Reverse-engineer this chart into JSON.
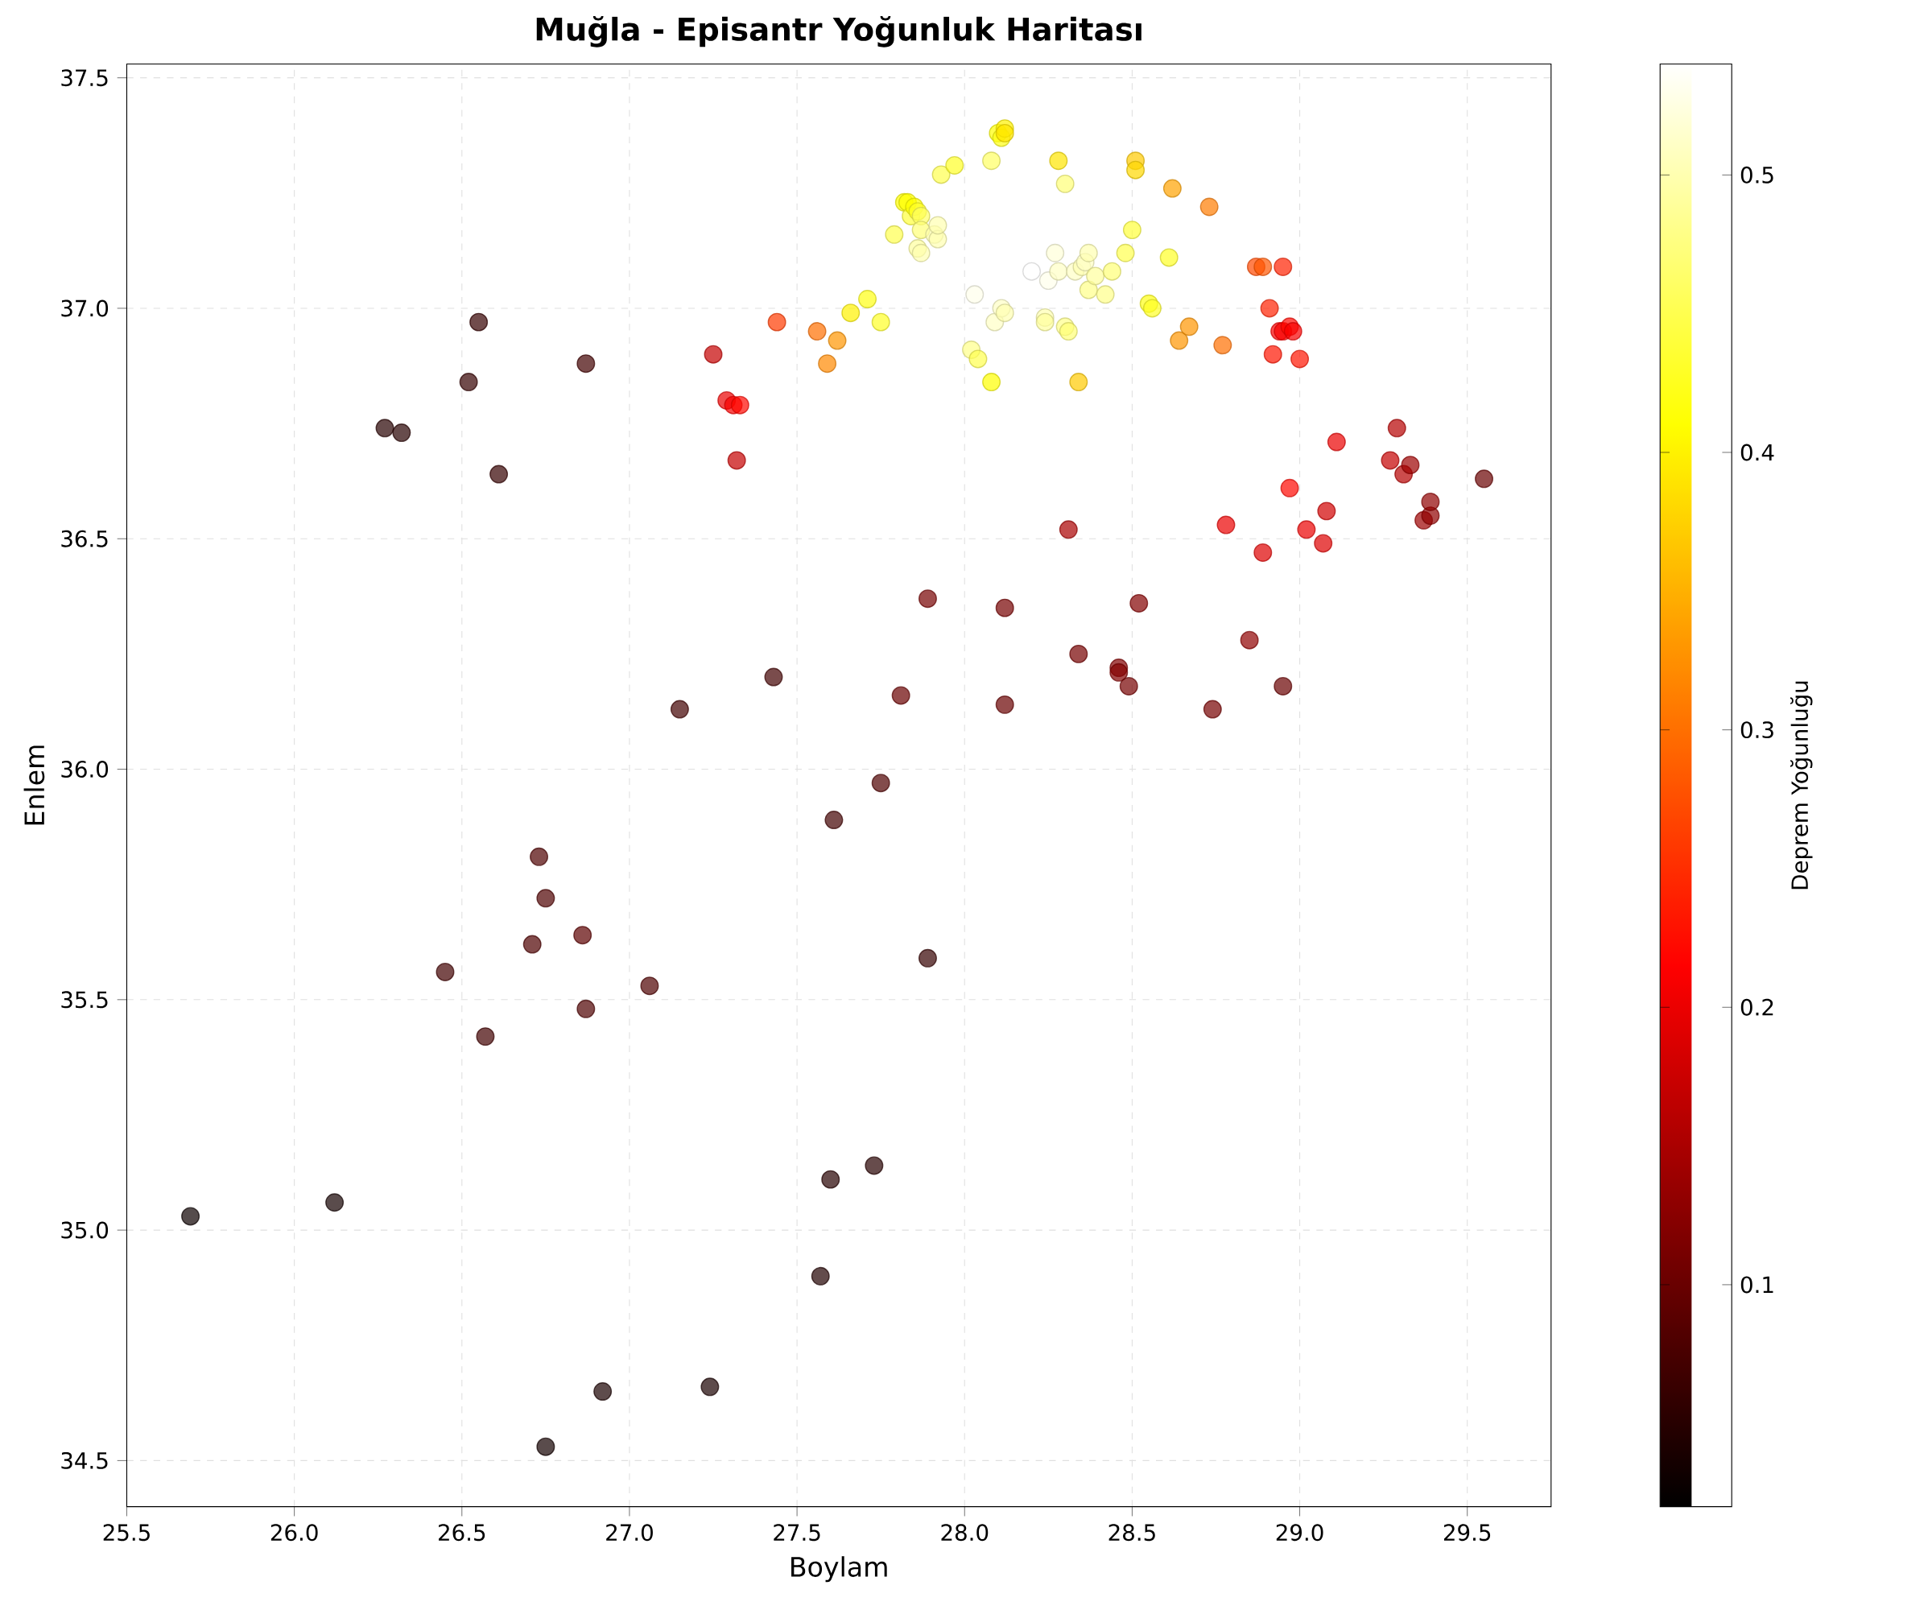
{
  "chart_data": {
    "type": "scatter",
    "title": "Muğla - Episantr Yoğunluk Haritası",
    "xlabel": "Boylam",
    "ylabel": "Enlem",
    "clabel": "Deprem Yoğunluğu",
    "xlim": [
      25.5,
      29.75
    ],
    "ylim": [
      34.4,
      37.53
    ],
    "xticks": [
      {
        "value": 25.5,
        "label": "25.5"
      },
      {
        "value": 26,
        "label": "26.0"
      },
      {
        "value": 26.5,
        "label": "26.5"
      },
      {
        "value": 27,
        "label": "27.0"
      },
      {
        "value": 27.5,
        "label": "27.5"
      },
      {
        "value": 28,
        "label": "28.0"
      },
      {
        "value": 28.5,
        "label": "28.5"
      },
      {
        "value": 29,
        "label": "29.0"
      },
      {
        "value": 29.5,
        "label": "29.5"
      }
    ],
    "yticks": [
      {
        "value": 34.5,
        "label": "34.5"
      },
      {
        "value": 35,
        "label": "35.0"
      },
      {
        "value": 35.5,
        "label": "35.5"
      },
      {
        "value": 36,
        "label": "36.0"
      },
      {
        "value": 36.5,
        "label": "36.5"
      },
      {
        "value": 37,
        "label": "37.0"
      },
      {
        "value": 37.5,
        "label": "37.5"
      }
    ],
    "clim": [
      0.02,
      0.54
    ],
    "cticks": [
      0.1,
      0.2,
      0.3,
      0.4,
      0.5
    ],
    "grid": true,
    "marker": "circle",
    "x": [
      25.69,
      26.12,
      26.75,
      26.92,
      27.24,
      27.57,
      27.6,
      27.73,
      26.27,
      26.32,
      26.52,
      26.55,
      26.61,
      26.87,
      27.15,
      27.43,
      26.45,
      26.57,
      26.73,
      26.75,
      26.71,
      26.86,
      26.87,
      27.06,
      27.61,
      27.75,
      27.89,
      27.81,
      27.89,
      28.12,
      28.12,
      28.34,
      28.46,
      28.46,
      28.49,
      28.52,
      28.74,
      28.85,
      28.95,
      28.31,
      28.78,
      28.89,
      28.97,
      29.02,
      29.07,
      29.08,
      29.11,
      29.27,
      29.29,
      29.31,
      29.33,
      29.37,
      29.39,
      29.39,
      29.55,
      27.25,
      27.29,
      27.31,
      27.33,
      27.32,
      27.44,
      27.56,
      27.59,
      27.62,
      27.66,
      27.71,
      27.75,
      27.79,
      27.82,
      27.83,
      27.84,
      27.85,
      27.86,
      27.87,
      27.87,
      27.86,
      27.87,
      27.91,
      27.92,
      27.92,
      27.93,
      27.97,
      28.08,
      28.1,
      28.11,
      28.12,
      28.12,
      28.28,
      28.3,
      28.03,
      28.02,
      28.04,
      28.08,
      28.09,
      28.11,
      28.12,
      28.2,
      28.24,
      28.24,
      28.25,
      28.27,
      28.28,
      28.3,
      28.31,
      28.33,
      28.35,
      28.36,
      28.37,
      28.37,
      28.39,
      28.42,
      28.44,
      28.34,
      28.48,
      28.5,
      28.51,
      28.51,
      28.55,
      28.56,
      28.61,
      28.62,
      28.64,
      28.67,
      28.73,
      28.77,
      28.87,
      28.89,
      28.95,
      28.91,
      28.92,
      28.94,
      28.95,
      28.97,
      28.98,
      29.0
    ],
    "values": [
      35.03,
      35.06,
      34.53,
      34.65,
      34.66,
      34.9,
      35.11,
      35.14,
      36.74,
      36.73,
      36.84,
      36.97,
      36.64,
      36.88,
      36.13,
      36.2,
      35.56,
      35.42,
      35.81,
      35.72,
      35.62,
      35.64,
      35.48,
      35.53,
      35.89,
      35.97,
      35.59,
      36.16,
      36.37,
      36.35,
      36.14,
      36.25,
      36.22,
      36.21,
      36.18,
      36.36,
      36.13,
      36.28,
      36.18,
      36.52,
      36.53,
      36.47,
      36.61,
      36.52,
      36.49,
      36.56,
      36.71,
      36.67,
      36.74,
      36.64,
      36.66,
      36.54,
      36.55,
      36.58,
      36.63,
      36.9,
      36.8,
      36.79,
      36.79,
      36.67,
      36.97,
      36.95,
      36.88,
      36.93,
      36.99,
      37.02,
      36.97,
      37.16,
      37.23,
      37.23,
      37.2,
      37.22,
      37.21,
      37.2,
      37.17,
      37.13,
      37.12,
      37.16,
      37.15,
      37.18,
      37.29,
      37.31,
      37.32,
      37.38,
      37.37,
      37.39,
      37.38,
      37.32,
      37.27,
      37.03,
      36.91,
      36.89,
      36.84,
      36.97,
      37.0,
      36.99,
      37.08,
      36.98,
      36.97,
      37.06,
      37.12,
      37.08,
      36.96,
      36.95,
      37.08,
      37.09,
      37.1,
      37.12,
      37.04,
      37.07,
      37.03,
      37.08,
      36.84,
      37.12,
      37.17,
      37.32,
      37.3,
      37.01,
      37.0,
      37.11,
      37.26,
      36.93,
      36.96,
      37.22,
      36.92,
      37.09,
      37.09,
      37.09,
      37.0,
      36.9,
      36.95,
      36.95,
      36.96,
      36.95,
      36.89
    ],
    "cvalues": [
      0.03,
      0.035,
      0.035,
      0.04,
      0.04,
      0.045,
      0.05,
      0.05,
      0.05,
      0.05,
      0.06,
      0.06,
      0.06,
      0.07,
      0.07,
      0.07,
      0.07,
      0.07,
      0.08,
      0.08,
      0.08,
      0.09,
      0.08,
      0.08,
      0.07,
      0.08,
      0.06,
      0.1,
      0.11,
      0.11,
      0.1,
      0.11,
      0.12,
      0.12,
      0.11,
      0.12,
      0.11,
      0.13,
      0.1,
      0.15,
      0.2,
      0.19,
      0.22,
      0.2,
      0.19,
      0.18,
      0.2,
      0.17,
      0.16,
      0.16,
      0.14,
      0.14,
      0.13,
      0.13,
      0.1,
      0.17,
      0.2,
      0.21,
      0.22,
      0.17,
      0.26,
      0.3,
      0.32,
      0.33,
      0.4,
      0.42,
      0.43,
      0.45,
      0.41,
      0.41,
      0.44,
      0.41,
      0.43,
      0.46,
      0.47,
      0.49,
      0.5,
      0.5,
      0.5,
      0.5,
      0.45,
      0.43,
      0.46,
      0.41,
      0.42,
      0.4,
      0.39,
      0.39,
      0.47,
      0.53,
      0.48,
      0.45,
      0.41,
      0.51,
      0.51,
      0.5,
      0.54,
      0.5,
      0.49,
      0.53,
      0.52,
      0.51,
      0.48,
      0.47,
      0.51,
      0.5,
      0.51,
      0.5,
      0.48,
      0.49,
      0.48,
      0.47,
      0.37,
      0.45,
      0.44,
      0.37,
      0.38,
      0.42,
      0.43,
      0.43,
      0.34,
      0.33,
      0.33,
      0.31,
      0.3,
      0.27,
      0.28,
      0.24,
      0.24,
      0.23,
      0.21,
      0.21,
      0.22,
      0.21,
      0.23
    ]
  }
}
